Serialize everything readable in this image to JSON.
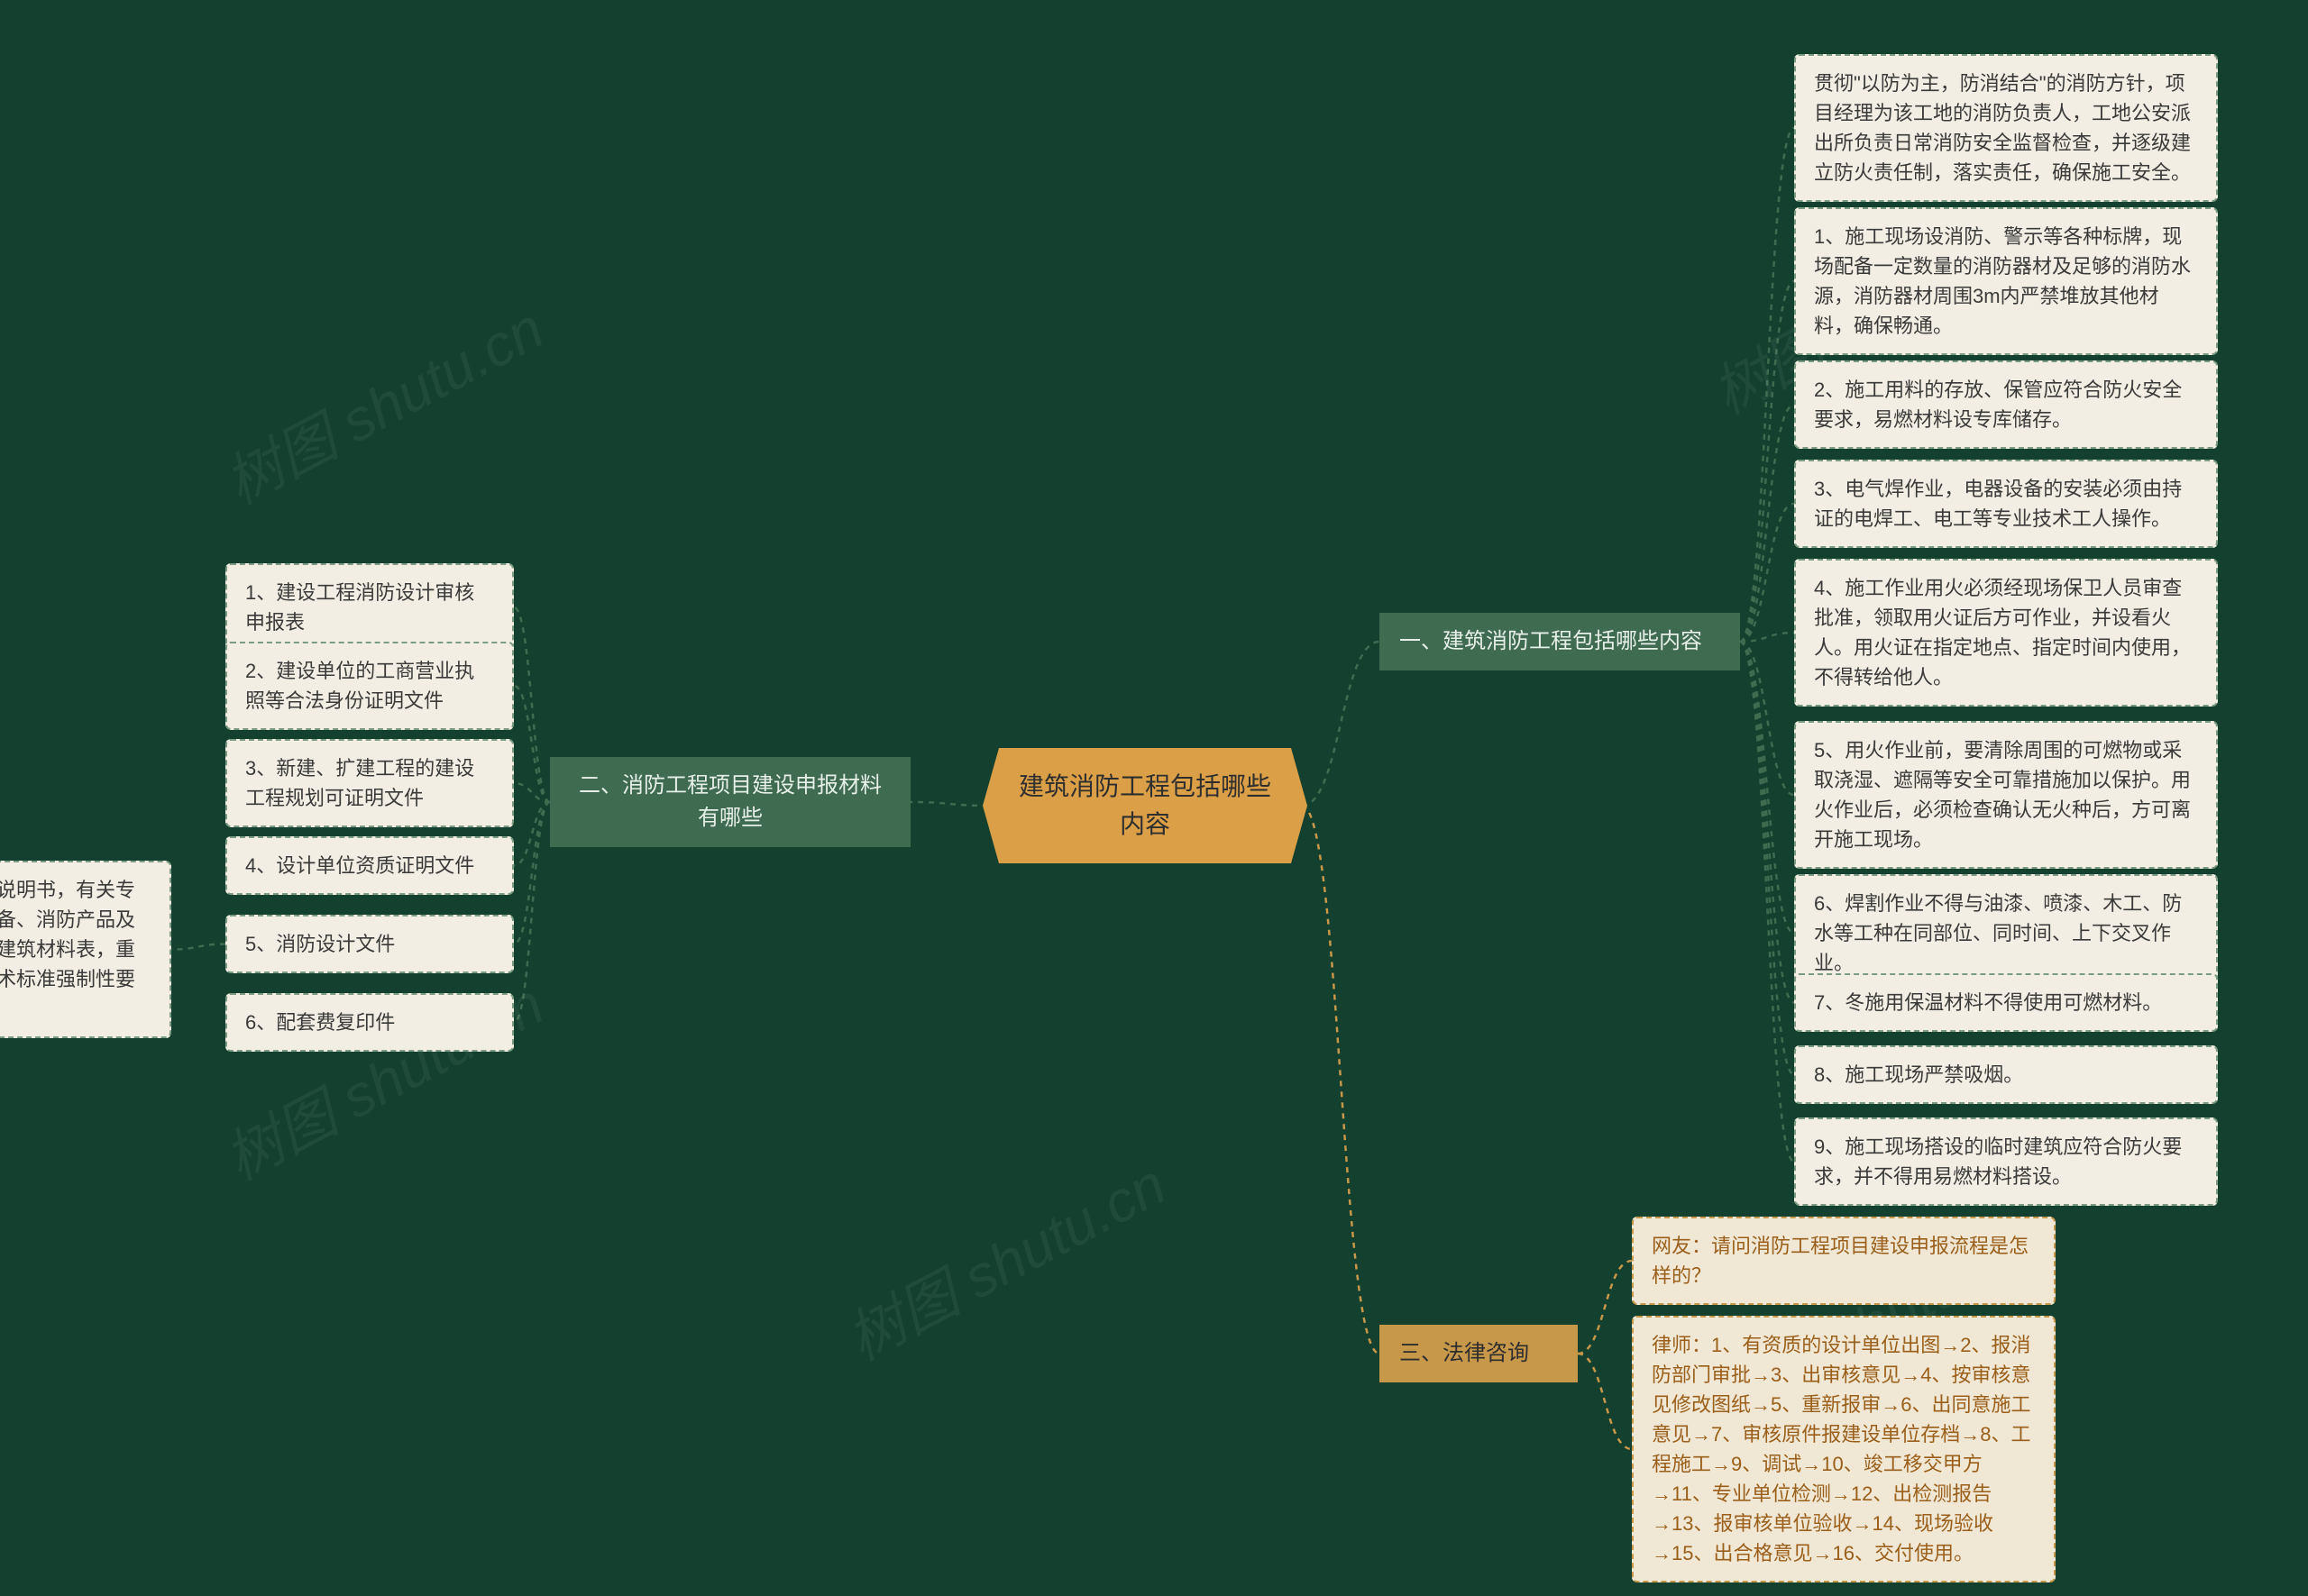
{
  "colors": {
    "background": "#13402f",
    "root_bg": "#dba047",
    "root_text": "#2e2e2e",
    "branch_bg": "#3f6b50",
    "branch_text": "#e6efe8",
    "branch3_bg": "#c7974a",
    "branch3_text": "#2e2e2e",
    "leaf_bg": "#f3eee3",
    "leaf_text": "#3a3a3a",
    "leaf_border": "#7b9b82",
    "leaf3_bg": "#f0e7d4",
    "leaf3_border": "#c7974a",
    "leaf3_text": "#9a5f1a",
    "connector_green": "#3f6b50",
    "connector_amber": "#c7974a",
    "watermark_color": "#cbd6cf"
  },
  "watermark_text": "树图 shutu.cn",
  "root": "建筑消防工程包括哪些内容",
  "branches": {
    "b1": {
      "label": "一、建筑消防工程包括哪些内容",
      "leaves": [
        "贯彻\"以防为主，防消结合\"的消防方针，项目经理为该工地的消防负责人，工地公安派出所负责日常消防安全监督检查，并逐级建立防火责任制，落实责任，确保施工安全。",
        "1、施工现场设消防、警示等各种标牌，现场配备一定数量的消防器材及足够的消防水源，消防器材周围3m内严禁堆放其他材料，确保畅通。",
        "2、施工用料的存放、保管应符合防火安全要求，易燃材料设专库储存。",
        "3、电气焊作业，电器设备的安装必须由持证的电焊工、电工等专业技术工人操作。",
        "4、施工作业用火必须经现场保卫人员审查批准，领取用火证后方可作业，并设看火人。用火证在指定地点、指定时间内使用，不得转给他人。",
        "5、用火作业前，要清除周围的可燃物或采取浇湿、遮隔等安全可靠措施加以保护。用火作业后，必须检查确认无火种后，方可离开施工现场。",
        "6、焊割作业不得与油漆、喷漆、木工、防水等工种在同部位、同时间、上下交叉作业。",
        "7、冬施用保温材料不得使用可燃材料。",
        "8、施工现场严禁吸烟。",
        "9、施工现场搭设的临时建筑应符合防火要求，并不得用易燃材料搭设。"
      ]
    },
    "b2": {
      "label": "二、消防工程项目建设申报材料有哪些",
      "leaves": [
        "1、建设工程消防设计审核申报表",
        "2、建设单位的工商营业执照等合法身份证明文件",
        "3、新建、扩建工程的建设工程规划可证明文件",
        "4、设计单位资质证明文件",
        "5、消防设计文件",
        "6、配套费复印件"
      ],
      "sub": "消防设计文件应当包括设计说明书，有关专业的设计图纸，主要消防设备、消防产品及有关消防性能要求的构件、建筑材料表，重点反映国家工程建设消防技术标准强制性要求设计内容。"
    },
    "b3": {
      "label": "三、法律咨询",
      "leaves": [
        "网友：请问消防工程项目建设申报流程是怎样的？",
        "律师：1、有资质的设计单位出图→2、报消防部门审批→3、出审核意见→4、按审核意见修改图纸→5、重新报审→6、出同意施工意见→7、审核原件报建设单位存档→8、工程施工→9、调试→10、竣工移交甲方→11、专业单位检测→12、出检测报告→13、报审核单位验收→14、现场验收→15、出合格意见→16、交付使用。"
      ]
    }
  }
}
